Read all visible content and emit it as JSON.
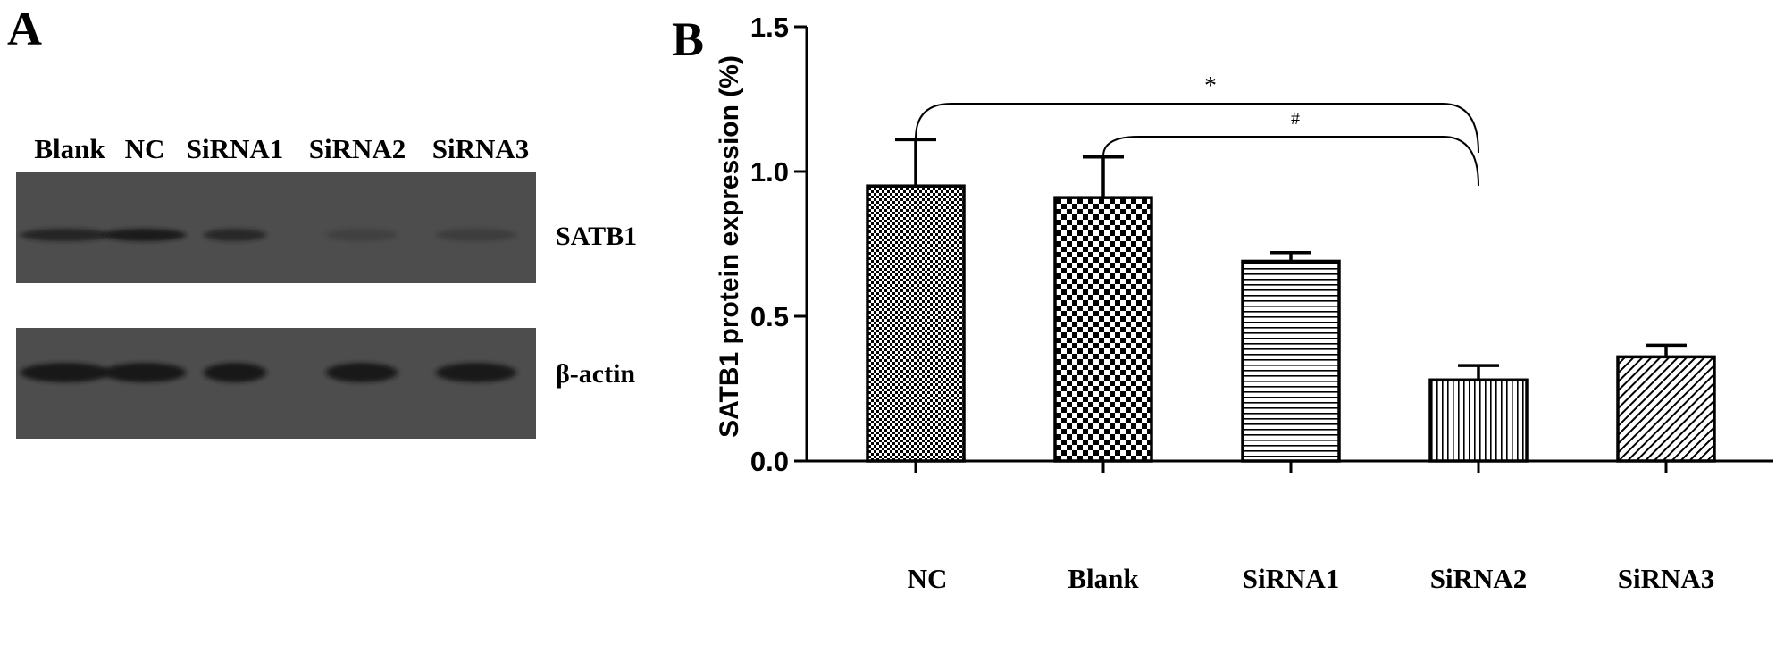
{
  "panel_a": {
    "label": "A",
    "lanes": [
      "Blank",
      "NC",
      "SiRNA1",
      "SiRNA2",
      "SiRNA3"
    ],
    "blots": [
      {
        "name": "SATB1",
        "band_intensity": [
          0.72,
          0.9,
          0.66,
          0.22,
          0.28
        ]
      },
      {
        "name": "β-actin",
        "band_intensity": [
          0.95,
          0.95,
          0.95,
          0.93,
          0.93
        ]
      }
    ],
    "colors": {
      "membrane": "#4d4d4d",
      "band": "#141414"
    }
  },
  "panel_b": {
    "label": "B"
  },
  "chart_data": {
    "type": "bar",
    "categories": [
      "NC",
      "Blank",
      "SiRNA1",
      "SiRNA2",
      "SiRNA3"
    ],
    "values": [
      0.95,
      0.91,
      0.69,
      0.28,
      0.36
    ],
    "errors": [
      0.16,
      0.14,
      0.03,
      0.05,
      0.04
    ],
    "patterns": [
      "fine-checker",
      "checkerboard",
      "horizontal-lines",
      "vertical-lines",
      "diagonal-lines"
    ],
    "ylabel": "SATB1 protein expression (%)",
    "ylim": [
      0,
      1.5
    ],
    "yticks": [
      "0.0",
      "0.5",
      "1.0",
      "1.5"
    ],
    "grid": false,
    "legend": "none",
    "annotations": [
      {
        "symbol": "*",
        "from": "NC",
        "to": "SiRNA2"
      },
      {
        "symbol": "#",
        "from": "Blank",
        "to": "SiRNA2"
      }
    ]
  }
}
